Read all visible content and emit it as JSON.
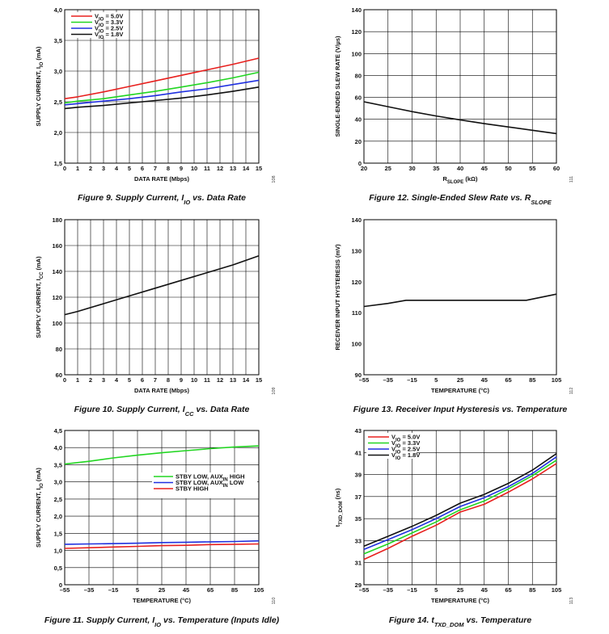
{
  "chart_data": [
    {
      "id": "fig9",
      "type": "line",
      "title": "Figure 9. Supply Current, I_IO vs. Data Rate",
      "caption_parts": [
        "Figure 9. Supply Current, I",
        "IO",
        " vs. Data Rate"
      ],
      "xlabel": "DATA RATE (Mbps)",
      "ylabel": "SUPPLY CURRENT, I_IO (mA)",
      "ylabel_parts": [
        "SUPPLY CURRENT, I",
        "IO",
        " (mA)"
      ],
      "xlim": [
        0,
        15
      ],
      "ylim": [
        1.5,
        4.0
      ],
      "xticks": [
        0,
        1,
        2,
        3,
        4,
        5,
        6,
        7,
        8,
        9,
        10,
        11,
        12,
        13,
        14,
        15
      ],
      "yticks": [
        1.5,
        2.0,
        2.5,
        3.0,
        3.5,
        4.0
      ],
      "ytick_labels": [
        "1,5",
        "2,0",
        "2,5",
        "3,0",
        "3,5",
        "4,0"
      ],
      "grid": true,
      "legend_position": "top-left",
      "fig_id": "108",
      "series": [
        {
          "name": "V_IO = 5.0V",
          "label_parts": [
            "V",
            "IO",
            " = 5.0V"
          ],
          "color": "#e8201e",
          "x": [
            0,
            1,
            3,
            5,
            7,
            9,
            11,
            13,
            15
          ],
          "y": [
            2.55,
            2.58,
            2.66,
            2.75,
            2.84,
            2.93,
            3.02,
            3.11,
            3.21
          ]
        },
        {
          "name": "V_IO = 3.3V",
          "label_parts": [
            "V",
            "IO",
            " = 3.3V"
          ],
          "color": "#22d622",
          "x": [
            0,
            1,
            3,
            5,
            7,
            9,
            11,
            13,
            15
          ],
          "y": [
            2.48,
            2.51,
            2.55,
            2.61,
            2.67,
            2.74,
            2.81,
            2.89,
            2.98
          ]
        },
        {
          "name": "V_IO = 2.5V",
          "label_parts": [
            "V",
            "IO",
            " = 2.5V"
          ],
          "color": "#2030e0",
          "x": [
            0,
            1,
            3,
            5,
            7,
            9,
            11,
            13,
            15
          ],
          "y": [
            2.45,
            2.47,
            2.51,
            2.55,
            2.6,
            2.66,
            2.71,
            2.78,
            2.85
          ]
        },
        {
          "name": "V_IO = 1.8V",
          "label_parts": [
            "V",
            "IO",
            " = 1.8V"
          ],
          "color": "#111111",
          "x": [
            0,
            1,
            3,
            5,
            7,
            9,
            11,
            13,
            15
          ],
          "y": [
            2.39,
            2.41,
            2.44,
            2.48,
            2.52,
            2.56,
            2.61,
            2.67,
            2.74
          ]
        }
      ]
    },
    {
      "id": "fig12",
      "type": "line",
      "title": "Figure 12. Single-Ended Slew Rate vs. R_SLOPE",
      "caption_parts": [
        "Figure 12. Single-Ended Slew Rate vs. R",
        "SLOPE",
        ""
      ],
      "xlabel": "R_SLOPE (kΩ)",
      "xlabel_parts": [
        "R",
        "SLOPE",
        " (kΩ)"
      ],
      "ylabel": "SINGLE-ENDED SLEW RATE (V/µs)",
      "ylabel_parts": [
        "SINGLE-ENDED SLEW RATE (V/µs)",
        "",
        ""
      ],
      "xlim": [
        20,
        60
      ],
      "ylim": [
        0,
        140
      ],
      "xticks": [
        20,
        25,
        30,
        35,
        40,
        45,
        50,
        55,
        60
      ],
      "yticks": [
        0,
        20,
        40,
        60,
        80,
        100,
        120,
        140
      ],
      "ytick_labels": [
        "0",
        "20",
        "40",
        "60",
        "80",
        "100",
        "120",
        "140"
      ],
      "grid": true,
      "fig_id": "111",
      "series": [
        {
          "name": "",
          "color": "#111111",
          "x": [
            20,
            25,
            30,
            35,
            40,
            45,
            50,
            55,
            60
          ],
          "y": [
            56,
            51.5,
            47,
            43,
            39.5,
            36,
            33,
            30,
            27
          ]
        }
      ]
    },
    {
      "id": "fig10",
      "type": "line",
      "title": "Figure 10. Supply Current, I_CC vs. Data Rate",
      "caption_parts": [
        "Figure 10. Supply Current, I",
        "CC",
        " vs. Data Rate"
      ],
      "xlabel": "DATA RATE (Mbps)",
      "ylabel": "SUPPLY CURRENT, I_CC (mA)",
      "ylabel_parts": [
        "SUPPLY CURRENT, I",
        "CC",
        " (mA)"
      ],
      "xlim": [
        0,
        15
      ],
      "ylim": [
        60,
        180
      ],
      "xticks": [
        0,
        1,
        2,
        3,
        4,
        5,
        6,
        7,
        8,
        9,
        10,
        11,
        12,
        13,
        14,
        15
      ],
      "yticks": [
        60,
        80,
        100,
        120,
        140,
        160,
        180
      ],
      "ytick_labels": [
        "60",
        "80",
        "100",
        "120",
        "140",
        "160",
        "180"
      ],
      "grid": true,
      "fig_id": "109",
      "series": [
        {
          "name": "",
          "color": "#111111",
          "x": [
            0,
            1,
            3,
            5,
            7,
            9,
            11,
            13,
            15
          ],
          "y": [
            106.5,
            109,
            115,
            121,
            127,
            133,
            139,
            145,
            152
          ]
        }
      ]
    },
    {
      "id": "fig13",
      "type": "line",
      "title": "Figure 13. Receiver Input Hysteresis vs. Temperature",
      "caption_parts": [
        "Figure 13. Receiver Input Hysteresis vs. Temperature",
        "",
        ""
      ],
      "xlabel": "TEMPERATURE (°C)",
      "ylabel": "RECEIVER INPUT HYSTERESIS (mV)",
      "ylabel_parts": [
        "RECEIVER INPUT HYSTERESIS (mV)",
        "",
        ""
      ],
      "xlim": [
        -55,
        105
      ],
      "ylim": [
        90,
        140
      ],
      "xticks": [
        -55,
        -35,
        -15,
        5,
        25,
        45,
        65,
        85,
        105
      ],
      "xtick_labels": [
        "–55",
        "–35",
        "–15",
        "5",
        "25",
        "45",
        "65",
        "85",
        "105"
      ],
      "yticks": [
        90,
        100,
        110,
        120,
        130,
        140
      ],
      "ytick_labels": [
        "90",
        "100",
        "110",
        "120",
        "130",
        "140"
      ],
      "grid": false,
      "fig_id": "112",
      "series": [
        {
          "name": "",
          "color": "#111111",
          "x": [
            -55,
            -35,
            -20,
            0,
            40,
            60,
            80,
            105
          ],
          "y": [
            112,
            113,
            114,
            114,
            114,
            114,
            114,
            116
          ]
        }
      ]
    },
    {
      "id": "fig11",
      "type": "line",
      "title": "Figure 11. Supply Current, I_IO vs. Temperature (Inputs Idle)",
      "caption_parts": [
        "Figure 11. Supply Current, I",
        "IO",
        " vs. Temperature (Inputs Idle)"
      ],
      "xlabel": "TEMPERATURE (°C)",
      "ylabel": "SUPPLY CURRENT, I_IO (mA)",
      "ylabel_parts": [
        "SUPPLY CURRENT, I",
        "IO",
        " (mA)"
      ],
      "xlim": [
        -55,
        105
      ],
      "ylim": [
        0,
        4.5
      ],
      "xticks": [
        -55,
        -35,
        -15,
        5,
        25,
        45,
        65,
        85,
        105
      ],
      "xtick_labels": [
        "–55",
        "–35",
        "–15",
        "5",
        "25",
        "45",
        "65",
        "85",
        "105"
      ],
      "yticks": [
        0,
        0.5,
        1.0,
        1.5,
        2.0,
        2.5,
        3.0,
        3.5,
        4.0,
        4.5
      ],
      "ytick_labels": [
        "0",
        "0,5",
        "1,0",
        "1,5",
        "2,0",
        "2,5",
        "3,0",
        "3,5",
        "4,0",
        "4,5"
      ],
      "grid": true,
      "legend_position": "center-right",
      "fig_id": "110",
      "series": [
        {
          "name": "STBY LOW, AUX_IN HIGH",
          "label_parts": [
            "STBY LOW, AUX",
            "IN",
            " HIGH"
          ],
          "color": "#22d622",
          "x": [
            -55,
            -35,
            -15,
            5,
            25,
            45,
            65,
            85,
            105
          ],
          "y": [
            3.52,
            3.6,
            3.7,
            3.78,
            3.85,
            3.91,
            3.97,
            4.02,
            4.05
          ]
        },
        {
          "name": "STBY LOW, AUX_IN LOW",
          "label_parts": [
            "STBY LOW, AUX",
            "IN",
            " LOW"
          ],
          "color": "#2030e0",
          "x": [
            -55,
            -35,
            -15,
            5,
            25,
            45,
            65,
            85,
            105
          ],
          "y": [
            1.18,
            1.19,
            1.2,
            1.21,
            1.23,
            1.24,
            1.25,
            1.26,
            1.28
          ]
        },
        {
          "name": "STBY HIGH",
          "label_parts": [
            "STBY HIGH",
            "",
            ""
          ],
          "color": "#e8201e",
          "x": [
            -55,
            -35,
            -15,
            5,
            25,
            45,
            65,
            85,
            105
          ],
          "y": [
            1.06,
            1.08,
            1.1,
            1.12,
            1.14,
            1.15,
            1.17,
            1.18,
            1.19
          ]
        }
      ]
    },
    {
      "id": "fig14",
      "type": "line",
      "title": "Figure 14. t_TXD_DOM vs. Temperature",
      "caption_parts": [
        "Figure 14. t",
        "TXD_DOM",
        " vs. Temperature"
      ],
      "xlabel": "TEMPERATURE (°C)",
      "ylabel": "t_TXD_DOM (ns)",
      "ylabel_parts": [
        "t",
        "TXD_DOM",
        " (ns)"
      ],
      "xlim": [
        -55,
        105
      ],
      "ylim": [
        29,
        43
      ],
      "xticks": [
        -55,
        -35,
        -15,
        5,
        25,
        45,
        65,
        85,
        105
      ],
      "xtick_labels": [
        "–55",
        "–35",
        "–15",
        "5",
        "25",
        "45",
        "65",
        "85",
        "105"
      ],
      "yticks": [
        29,
        31,
        33,
        35,
        37,
        39,
        41,
        43
      ],
      "ytick_labels": [
        "29",
        "31",
        "33",
        "35",
        "37",
        "39",
        "41",
        "43"
      ],
      "grid": true,
      "legend_position": "top-left",
      "fig_id": "113",
      "series": [
        {
          "name": "V_IO = 5.0V",
          "label_parts": [
            "V",
            "IO",
            " = 5.0V"
          ],
          "color": "#e8201e",
          "x": [
            -55,
            -35,
            -15,
            5,
            25,
            45,
            65,
            85,
            105
          ],
          "y": [
            31.3,
            32.3,
            33.4,
            34.4,
            35.6,
            36.3,
            37.4,
            38.6,
            40.0
          ]
        },
        {
          "name": "V_IO = 3.3V",
          "label_parts": [
            "V",
            "IO",
            " = 3.3V"
          ],
          "color": "#22d622",
          "x": [
            -55,
            -35,
            -15,
            5,
            25,
            45,
            65,
            85,
            105
          ],
          "y": [
            31.8,
            32.7,
            33.7,
            34.7,
            35.8,
            36.6,
            37.7,
            38.9,
            40.3
          ]
        },
        {
          "name": "V_IO = 2.5V",
          "label_parts": [
            "V",
            "IO",
            " = 2.5V"
          ],
          "color": "#2030e0",
          "x": [
            -55,
            -35,
            -15,
            5,
            25,
            45,
            65,
            85,
            105
          ],
          "y": [
            32.2,
            33.1,
            34.0,
            35.0,
            36.1,
            36.9,
            37.9,
            39.1,
            40.6
          ]
        },
        {
          "name": "V_IO = 1.8V",
          "label_parts": [
            "V",
            "IO",
            " = 1.8V"
          ],
          "color": "#111111",
          "x": [
            -55,
            -35,
            -15,
            5,
            25,
            45,
            65,
            85,
            105
          ],
          "y": [
            32.5,
            33.4,
            34.3,
            35.3,
            36.4,
            37.2,
            38.2,
            39.4,
            40.9
          ]
        }
      ]
    }
  ]
}
